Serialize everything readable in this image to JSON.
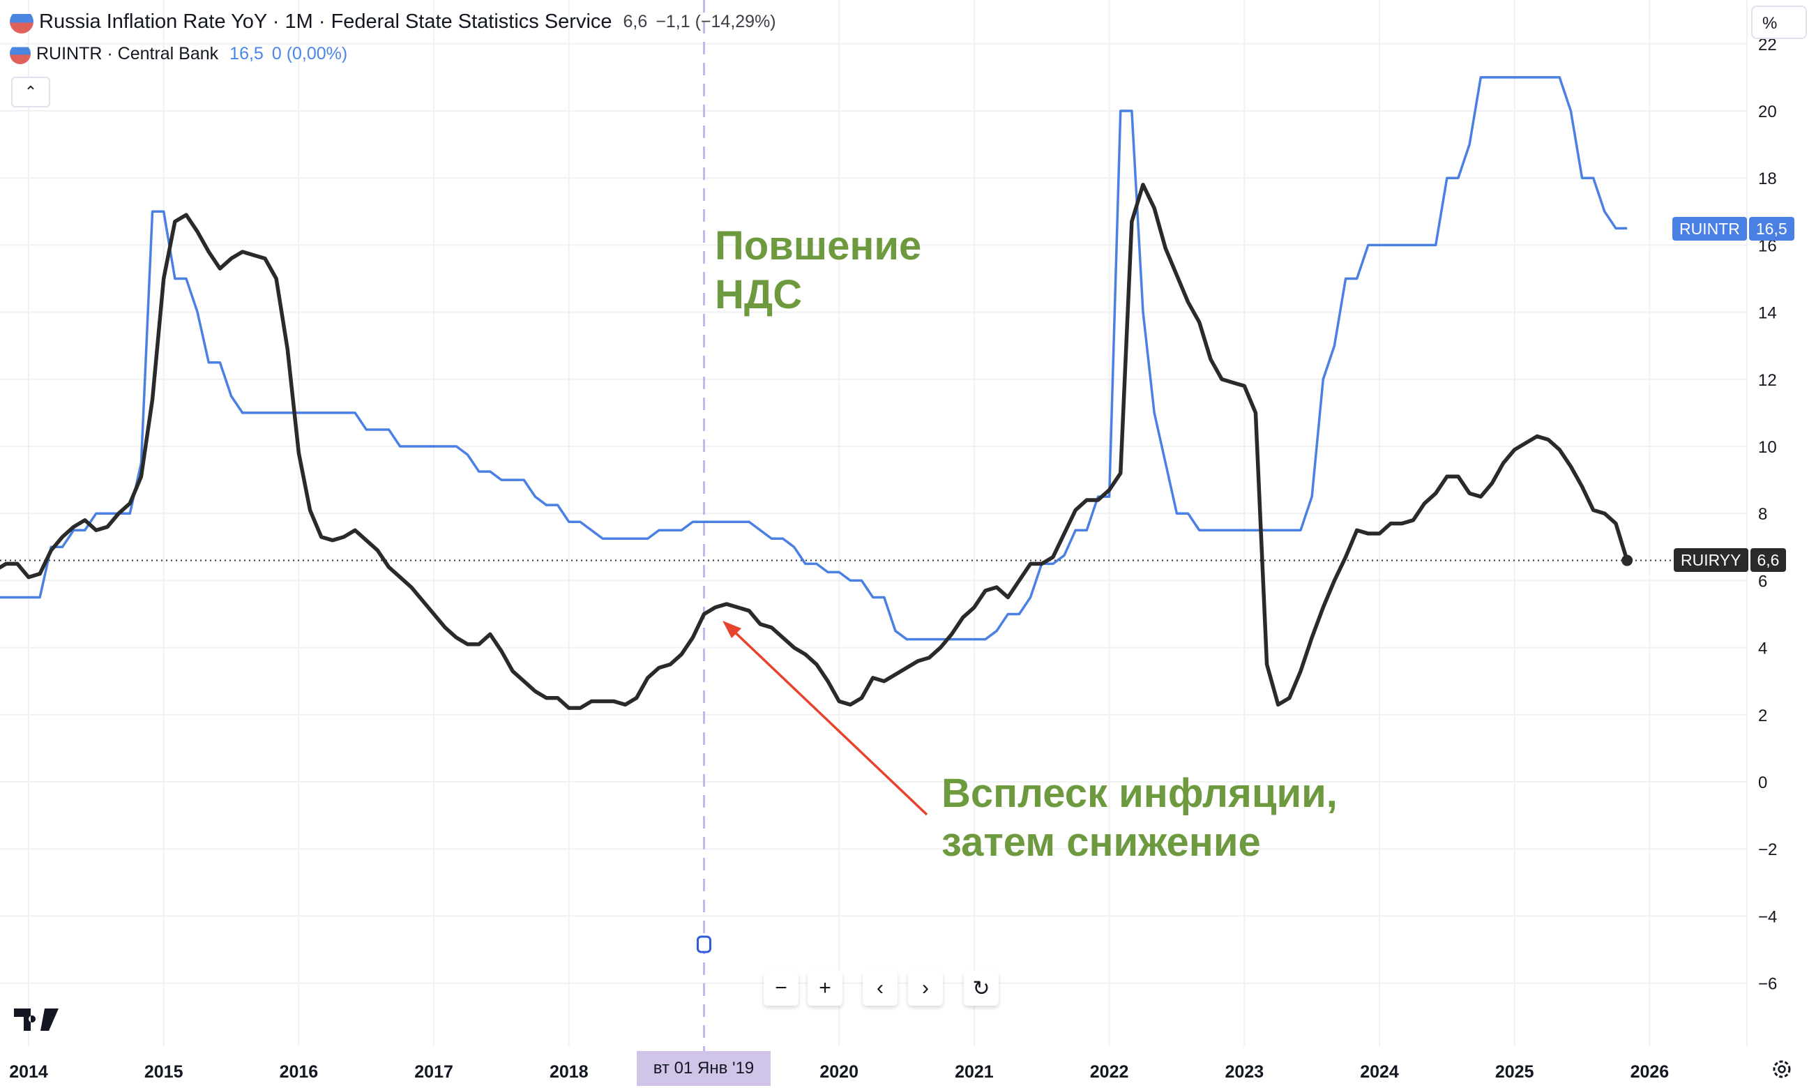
{
  "legend": {
    "series1": {
      "title": "Russia Inflation Rate YoY · 1M · Federal State Statistics Service",
      "value": "6,6",
      "change": "−1,1 (−14,29%)"
    },
    "series2": {
      "title": "RUINTR · Central Bank",
      "value": "16,5",
      "change": "0 (0,00%)"
    },
    "collapse_icon": "chevron-up"
  },
  "price_axis": {
    "unit": "%",
    "ticks": [
      -6,
      -4,
      -2,
      0,
      2,
      4,
      6,
      8,
      10,
      12,
      14,
      16,
      18,
      20,
      22
    ]
  },
  "time_axis": {
    "ticks": [
      "2014",
      "2015",
      "2016",
      "2017",
      "2018",
      "2020",
      "2021",
      "2022",
      "2023",
      "2024",
      "2025",
      "2026"
    ],
    "crosshair_label": "вт 01 Янв '19",
    "crosshair_date": "2019-01"
  },
  "price_tags": {
    "ruintr": {
      "symbol": "RUINTR",
      "value": "16,5",
      "color": "#4a7fe3"
    },
    "ruiryy": {
      "symbol": "RUIRYY",
      "value": "6,6",
      "color": "#2a2a2a"
    }
  },
  "annotations": {
    "vat": "Повшение\nНДС",
    "spike": "Всплеск инфляции,\nзатем снижение",
    "arrow_color": "#e8412c",
    "text_color": "#6e9a3f"
  },
  "controls": {
    "zoom_out": "−",
    "zoom_in": "+",
    "scroll_left": "‹",
    "scroll_right": "›",
    "reset": "↻"
  },
  "chart_data": {
    "type": "line",
    "ylim": [
      -7,
      22
    ],
    "grid": true,
    "frequency": "monthly",
    "series": [
      {
        "name": "Russia Inflation Rate YoY",
        "color": "#2a2a2a",
        "start": "2013-10",
        "by_year": {
          "2013": [
            6.3,
            6.5,
            6.5
          ],
          "2014": [
            6.1,
            6.2,
            6.9,
            7.3,
            7.6,
            7.8,
            7.5,
            7.6,
            8.0,
            8.3,
            9.1,
            11.4
          ],
          "2015": [
            15.0,
            16.7,
            16.9,
            16.4,
            15.8,
            15.3,
            15.6,
            15.8,
            15.7,
            15.6,
            15.0,
            12.9
          ],
          "2016": [
            9.8,
            8.1,
            7.3,
            7.2,
            7.3,
            7.5,
            7.2,
            6.9,
            6.4,
            6.1,
            5.8,
            5.4
          ],
          "2017": [
            5.0,
            4.6,
            4.3,
            4.1,
            4.1,
            4.4,
            3.9,
            3.3,
            3.0,
            2.7,
            2.5,
            2.5
          ],
          "2018": [
            2.2,
            2.2,
            2.4,
            2.4,
            2.4,
            2.3,
            2.5,
            3.1,
            3.4,
            3.5,
            3.8,
            4.3
          ],
          "2019": [
            5.0,
            5.2,
            5.3,
            5.2,
            5.1,
            4.7,
            4.6,
            4.3,
            4.0,
            3.8,
            3.5,
            3.0
          ],
          "2020": [
            2.4,
            2.3,
            2.5,
            3.1,
            3.0,
            3.2,
            3.4,
            3.6,
            3.7,
            4.0,
            4.4,
            4.9
          ],
          "2021": [
            5.2,
            5.7,
            5.8,
            5.5,
            6.0,
            6.5,
            6.5,
            6.7,
            7.4,
            8.1,
            8.4,
            8.4
          ],
          "2022": [
            8.7,
            9.2,
            16.7,
            17.8,
            17.1,
            15.9,
            15.1,
            14.3,
            13.7,
            12.6,
            12.0,
            11.9
          ],
          "2023": [
            11.8,
            11.0,
            3.5,
            2.3,
            2.5,
            3.3,
            4.3,
            5.2,
            6.0,
            6.7,
            7.5,
            7.4
          ],
          "2024": [
            7.4,
            7.7,
            7.7,
            7.8,
            8.3,
            8.6,
            9.1,
            9.1,
            8.6,
            8.5,
            8.9,
            9.5
          ],
          "2025": [
            9.9,
            10.1,
            10.3,
            10.2,
            9.9,
            9.4,
            8.8,
            8.1,
            8.0,
            7.7,
            6.6
          ]
        }
      },
      {
        "name": "RUINTR",
        "color": "#4a7fe3",
        "start": "2013-10",
        "by_year": {
          "2013": [
            5.5,
            5.5,
            5.5
          ],
          "2014": [
            5.5,
            5.5,
            7,
            7,
            7.5,
            7.5,
            8,
            8,
            8,
            8,
            9.5,
            17
          ],
          "2015": [
            17,
            15,
            15,
            14,
            12.5,
            12.5,
            11.5,
            11,
            11,
            11,
            11,
            11
          ],
          "2016": [
            11,
            11,
            11,
            11,
            11,
            11,
            10.5,
            10.5,
            10.5,
            10,
            10,
            10
          ],
          "2017": [
            10,
            10,
            10,
            9.75,
            9.25,
            9.25,
            9,
            9,
            9,
            8.5,
            8.25,
            8.25
          ],
          "2018": [
            7.75,
            7.75,
            7.5,
            7.25,
            7.25,
            7.25,
            7.25,
            7.25,
            7.5,
            7.5,
            7.5,
            7.75
          ],
          "2019": [
            7.75,
            7.75,
            7.75,
            7.75,
            7.75,
            7.5,
            7.25,
            7.25,
            7,
            6.5,
            6.5,
            6.25
          ],
          "2020": [
            6.25,
            6,
            6,
            5.5,
            5.5,
            4.5,
            4.25,
            4.25,
            4.25,
            4.25,
            4.25,
            4.25
          ],
          "2021": [
            4.25,
            4.25,
            4.5,
            5,
            5,
            5.5,
            6.5,
            6.5,
            6.75,
            7.5,
            7.5,
            8.5
          ],
          "2022": [
            8.5,
            20,
            20,
            14,
            11,
            9.5,
            8,
            8,
            7.5,
            7.5,
            7.5,
            7.5
          ],
          "2023": [
            7.5,
            7.5,
            7.5,
            7.5,
            7.5,
            7.5,
            8.5,
            12,
            13,
            15,
            15,
            16
          ],
          "2024": [
            16,
            16,
            16,
            16,
            16,
            16,
            18,
            18,
            19,
            21,
            21,
            21
          ],
          "2025": [
            21,
            21,
            21,
            21,
            21,
            20,
            18,
            18,
            17,
            16.5,
            16.5
          ]
        }
      }
    ]
  }
}
